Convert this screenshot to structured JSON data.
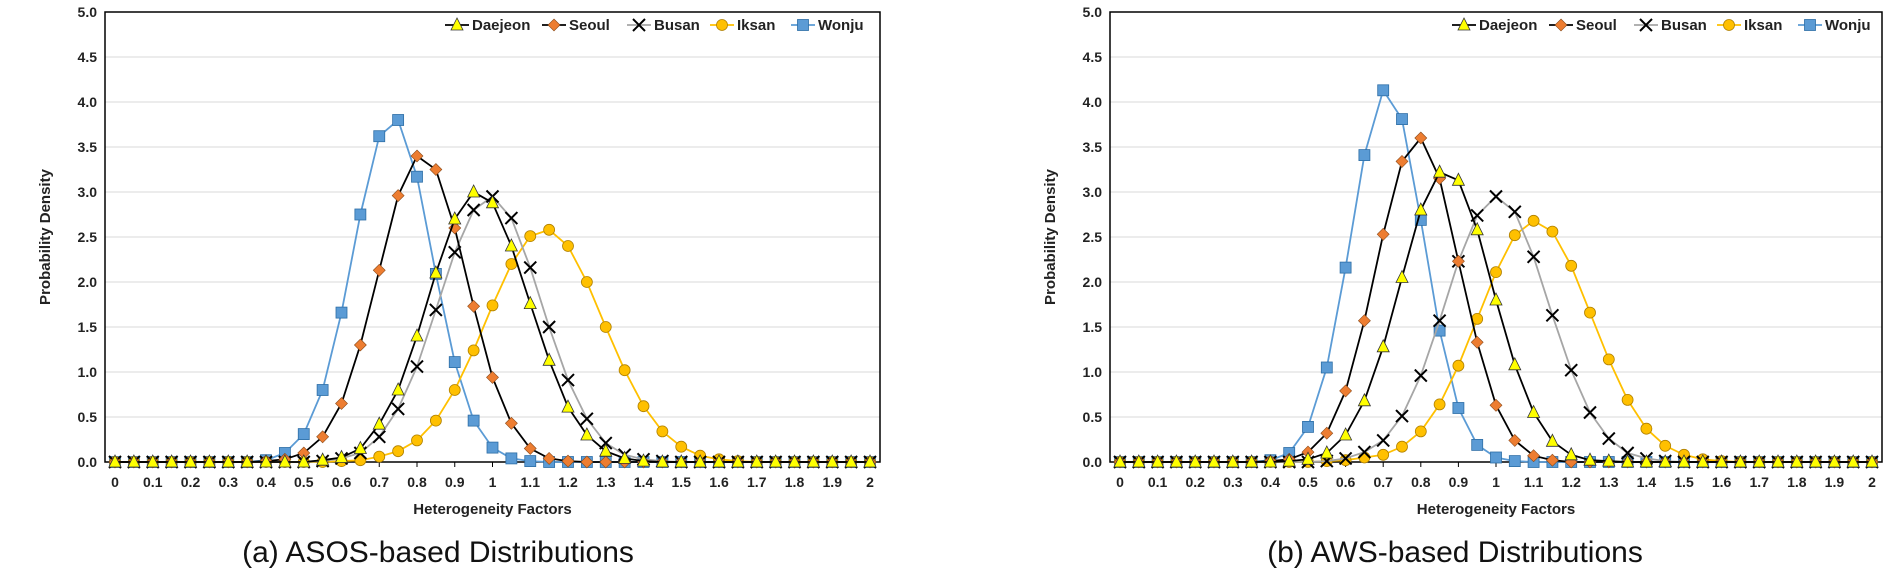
{
  "figure": {
    "captions": [
      "(a) ASOS-based Distributions",
      "(b) AWS-based Distributions"
    ]
  },
  "chart_data": [
    {
      "type": "line",
      "xlabel": "Heterogeneity Factors",
      "ylabel": "Probability Density",
      "xlim": [
        0,
        2
      ],
      "ylim": [
        0,
        5
      ],
      "xticks": [
        "0",
        "0.1",
        "0.2",
        "0.3",
        "0.4",
        "0.5",
        "0.6",
        "0.7",
        "0.8",
        "0.9",
        "1",
        "1.1",
        "1.2",
        "1.3",
        "1.4",
        "1.5",
        "1.6",
        "1.7",
        "1.8",
        "1.9",
        "2"
      ],
      "yticks": [
        "0.0",
        "0.5",
        "1.0",
        "1.5",
        "2.0",
        "2.5",
        "3.0",
        "3.5",
        "4.0",
        "4.5",
        "5.0"
      ],
      "grid": "horizontal",
      "legend": "top-right",
      "x": [
        0,
        0.05,
        0.1,
        0.15,
        0.2,
        0.25,
        0.3,
        0.35,
        0.4,
        0.45,
        0.5,
        0.55,
        0.6,
        0.65,
        0.7,
        0.75,
        0.8,
        0.85,
        0.9,
        0.95,
        1,
        1.05,
        1.1,
        1.15,
        1.2,
        1.25,
        1.3,
        1.35,
        1.4,
        1.45,
        1.5,
        1.55,
        1.6,
        1.65,
        1.7,
        1.75,
        1.8,
        1.85,
        1.9,
        1.95,
        2
      ],
      "series": [
        {
          "name": "Daejeon",
          "color": "#000000",
          "marker": "triangle",
          "marker_fill": "#ffff00",
          "values": [
            0,
            0,
            0,
            0,
            0,
            0,
            0,
            0,
            0,
            0,
            0,
            0.02,
            0.05,
            0.15,
            0.42,
            0.8,
            1.4,
            2.1,
            2.7,
            3.0,
            2.88,
            2.4,
            1.76,
            1.13,
            0.61,
            0.3,
            0.12,
            0.04,
            0.01,
            0,
            0,
            0,
            0,
            0,
            0,
            0,
            0,
            0,
            0,
            0,
            0
          ]
        },
        {
          "name": "Seoul",
          "color": "#000000",
          "marker": "diamond",
          "marker_fill": "#ed7d31",
          "values": [
            0,
            0,
            0,
            0,
            0,
            0,
            0,
            0,
            0.01,
            0.03,
            0.1,
            0.28,
            0.65,
            1.3,
            2.13,
            2.96,
            3.4,
            3.25,
            2.6,
            1.73,
            0.94,
            0.43,
            0.15,
            0.04,
            0.01,
            0,
            0,
            0,
            0,
            0,
            0,
            0,
            0,
            0,
            0,
            0,
            0,
            0,
            0,
            0,
            0
          ]
        },
        {
          "name": "Busan",
          "color": "#a6a6a6",
          "marker": "x",
          "marker_fill": "#000000",
          "values": [
            0,
            0,
            0,
            0,
            0,
            0,
            0,
            0,
            0,
            0,
            0,
            0.01,
            0.04,
            0.1,
            0.28,
            0.59,
            1.06,
            1.69,
            2.33,
            2.8,
            2.95,
            2.71,
            2.16,
            1.5,
            0.91,
            0.48,
            0.21,
            0.08,
            0.03,
            0.01,
            0,
            0,
            0,
            0,
            0,
            0,
            0,
            0,
            0,
            0,
            0
          ]
        },
        {
          "name": "Iksan",
          "color": "#ffc000",
          "marker": "circle",
          "marker_fill": "#ffc000",
          "values": [
            0,
            0,
            0,
            0,
            0,
            0,
            0,
            0,
            0,
            0,
            0,
            0,
            0.01,
            0.02,
            0.06,
            0.12,
            0.24,
            0.46,
            0.8,
            1.24,
            1.74,
            2.2,
            2.51,
            2.58,
            2.4,
            2.0,
            1.5,
            1.02,
            0.62,
            0.34,
            0.17,
            0.07,
            0.03,
            0.01,
            0,
            0,
            0,
            0,
            0,
            0,
            0
          ]
        },
        {
          "name": "Wonju",
          "color": "#5b9bd5",
          "marker": "square",
          "marker_fill": "#5b9bd5",
          "values": [
            0,
            0,
            0,
            0,
            0,
            0,
            0,
            0,
            0.02,
            0.1,
            0.31,
            0.8,
            1.66,
            2.75,
            3.62,
            3.8,
            3.17,
            2.09,
            1.11,
            0.46,
            0.16,
            0.04,
            0.01,
            0,
            0,
            0,
            0,
            0,
            0,
            0,
            0,
            0,
            0,
            0,
            0,
            0,
            0,
            0,
            0,
            0,
            0
          ]
        }
      ]
    },
    {
      "type": "line",
      "xlabel": "Heterogeneity Factors",
      "ylabel": "Probability Density",
      "xlim": [
        0,
        2
      ],
      "ylim": [
        0,
        5
      ],
      "xticks": [
        "0",
        "0.1",
        "0.2",
        "0.3",
        "0.4",
        "0.5",
        "0.6",
        "0.7",
        "0.8",
        "0.9",
        "1",
        "1.1",
        "1.2",
        "1.3",
        "1.4",
        "1.5",
        "1.6",
        "1.7",
        "1.8",
        "1.9",
        "2"
      ],
      "yticks": [
        "0.0",
        "0.5",
        "1.0",
        "1.5",
        "2.0",
        "2.5",
        "3.0",
        "3.5",
        "4.0",
        "4.5",
        "5.0"
      ],
      "grid": "horizontal",
      "legend": "top-right",
      "x": [
        0,
        0.05,
        0.1,
        0.15,
        0.2,
        0.25,
        0.3,
        0.35,
        0.4,
        0.45,
        0.5,
        0.55,
        0.6,
        0.65,
        0.7,
        0.75,
        0.8,
        0.85,
        0.9,
        0.95,
        1,
        1.05,
        1.1,
        1.15,
        1.2,
        1.25,
        1.3,
        1.35,
        1.4,
        1.45,
        1.5,
        1.55,
        1.6,
        1.65,
        1.7,
        1.75,
        1.8,
        1.85,
        1.9,
        1.95,
        2
      ],
      "series": [
        {
          "name": "Daejeon",
          "color": "#000000",
          "marker": "triangle",
          "marker_fill": "#ffff00",
          "values": [
            0,
            0,
            0,
            0,
            0,
            0,
            0,
            0,
            0,
            0.01,
            0.03,
            0.1,
            0.3,
            0.68,
            1.28,
            2.05,
            2.8,
            3.22,
            3.13,
            2.58,
            1.8,
            1.08,
            0.55,
            0.23,
            0.08,
            0.02,
            0.01,
            0,
            0,
            0,
            0,
            0,
            0,
            0,
            0,
            0,
            0,
            0,
            0,
            0,
            0
          ]
        },
        {
          "name": "Seoul",
          "color": "#000000",
          "marker": "diamond",
          "marker_fill": "#ed7d31",
          "values": [
            0,
            0,
            0,
            0,
            0,
            0,
            0,
            0,
            0.01,
            0.03,
            0.11,
            0.32,
            0.79,
            1.57,
            2.53,
            3.34,
            3.6,
            3.15,
            2.23,
            1.33,
            0.63,
            0.24,
            0.07,
            0.02,
            0,
            0,
            0,
            0,
            0,
            0,
            0,
            0,
            0,
            0,
            0,
            0,
            0,
            0,
            0,
            0,
            0
          ]
        },
        {
          "name": "Busan",
          "color": "#a6a6a6",
          "marker": "x",
          "marker_fill": "#000000",
          "values": [
            0,
            0,
            0,
            0,
            0,
            0,
            0,
            0,
            0,
            0,
            0,
            0.01,
            0.04,
            0.11,
            0.24,
            0.51,
            0.96,
            1.57,
            2.23,
            2.74,
            2.95,
            2.78,
            2.28,
            1.63,
            1.02,
            0.55,
            0.26,
            0.1,
            0.04,
            0.01,
            0,
            0,
            0,
            0,
            0,
            0,
            0,
            0,
            0,
            0,
            0
          ]
        },
        {
          "name": "Iksan",
          "color": "#ffc000",
          "marker": "circle",
          "marker_fill": "#ffc000",
          "values": [
            0,
            0,
            0,
            0,
            0,
            0,
            0,
            0,
            0,
            0,
            0,
            0.01,
            0.02,
            0.05,
            0.08,
            0.17,
            0.34,
            0.64,
            1.07,
            1.59,
            2.11,
            2.52,
            2.68,
            2.56,
            2.18,
            1.66,
            1.14,
            0.69,
            0.37,
            0.18,
            0.08,
            0.03,
            0.01,
            0,
            0,
            0,
            0,
            0,
            0,
            0,
            0
          ]
        },
        {
          "name": "Wonju",
          "color": "#5b9bd5",
          "marker": "square",
          "marker_fill": "#5b9bd5",
          "values": [
            0,
            0,
            0,
            0,
            0,
            0,
            0,
            0,
            0.02,
            0.1,
            0.39,
            1.05,
            2.16,
            3.41,
            4.13,
            3.81,
            2.69,
            1.46,
            0.6,
            0.19,
            0.05,
            0.01,
            0,
            0,
            0,
            0,
            0,
            0,
            0,
            0,
            0,
            0,
            0,
            0,
            0,
            0,
            0,
            0,
            0,
            0,
            0
          ]
        }
      ]
    }
  ]
}
